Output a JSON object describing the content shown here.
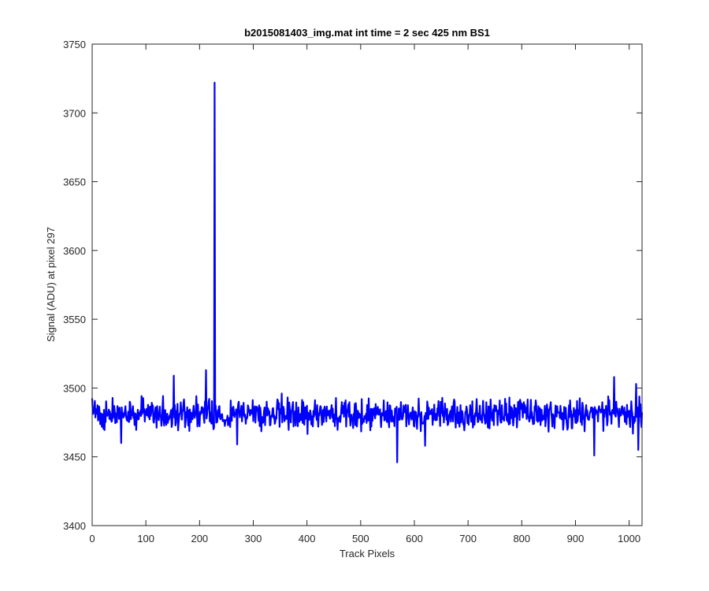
{
  "chart_data": {
    "type": "line",
    "title": "b2015081403_img.mat int time = 2 sec  425 nm BS1",
    "xlabel": "Track Pixels",
    "ylabel": "Signal (ADU) at pixel 297",
    "xlim": [
      0,
      1024
    ],
    "ylim": [
      3400,
      3750
    ],
    "xticks": [
      0,
      100,
      200,
      300,
      400,
      500,
      600,
      700,
      800,
      900,
      1000
    ],
    "yticks": [
      3400,
      3450,
      3500,
      3550,
      3600,
      3650,
      3700,
      3750
    ],
    "grid": false,
    "series_color": "#0000ff",
    "noise_baseline": 3481,
    "noise_half_range": 10,
    "notable_points": [
      {
        "x": 228,
        "y": 3722
      },
      {
        "x": 212,
        "y": 3513
      },
      {
        "x": 152,
        "y": 3509
      },
      {
        "x": 568,
        "y": 3446
      },
      {
        "x": 935,
        "y": 3451
      },
      {
        "x": 1017,
        "y": 3455
      },
      {
        "x": 54,
        "y": 3460
      },
      {
        "x": 270,
        "y": 3459
      },
      {
        "x": 620,
        "y": 3458
      },
      {
        "x": 972,
        "y": 3508
      },
      {
        "x": 1013,
        "y": 3503
      }
    ]
  }
}
